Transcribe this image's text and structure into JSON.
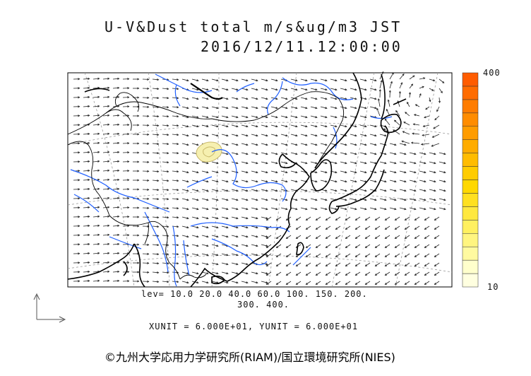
{
  "header": {
    "title_line1": "U-V&Dust total m/s&ug/m3 JST",
    "title_line2": "2016/12/11.12:00:00"
  },
  "legend": {
    "lev_line1": "lev= 10.0 20.0 40.0 60.0 100. 150. 200.",
    "lev_line2": "300. 400.",
    "levels": [
      10,
      20,
      40,
      60,
      100,
      150,
      200,
      300,
      400
    ],
    "colorbar_max_label": "400",
    "colorbar_min_label": "10",
    "colorbar_colors": [
      "#ffffe0",
      "#ffffcc",
      "#fffaa0",
      "#fff580",
      "#fff060",
      "#ffe840",
      "#ffe020",
      "#ffd800",
      "#ffcc00",
      "#ffbc00",
      "#ffac00",
      "#ff9c00",
      "#ff8c00",
      "#ff7c00",
      "#ff6c00",
      "#ff5c00"
    ]
  },
  "units_text": "XUNIT = 6.000E+01, YUNIT = 6.000E+01",
  "copyright": "©九州大学応用力学研究所(RIAM)/国立環境研究所(NIES)",
  "colors": {
    "coastline": "#000000",
    "river": "#1f5fff",
    "dust_fill": "#f6f0b0",
    "dust_contour": "#c8b86a",
    "arrow": "#222222",
    "grid": "#888888"
  }
}
